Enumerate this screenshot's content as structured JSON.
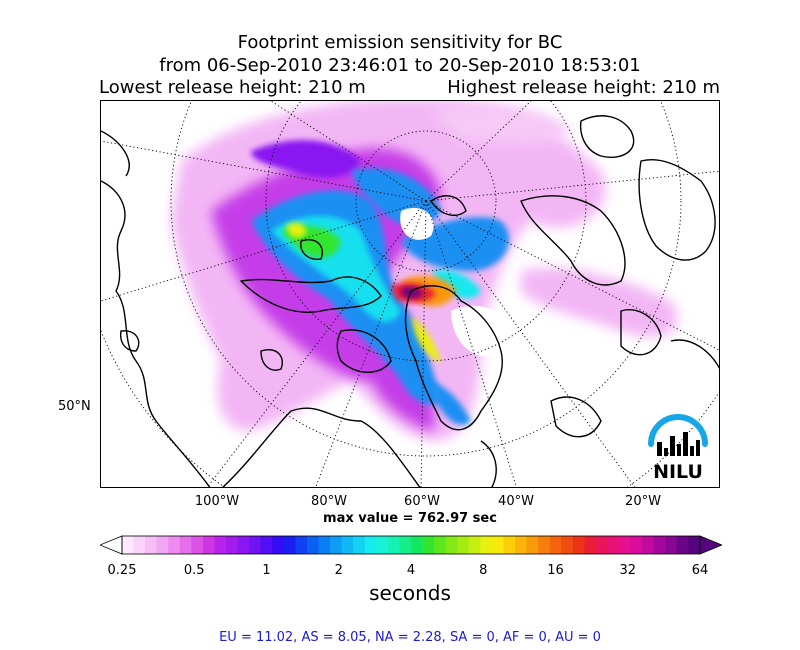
{
  "chart_data": {
    "type": "heatmap",
    "title": [
      "Footprint emission sensitivity for BC",
      "from 06-Sep-2010 23:46:01 to 20-Sep-2010 18:53:01"
    ],
    "subtitle_left": "Lowest release height: 210 m",
    "subtitle_right": "Highest release height: 210 m",
    "x_ticks": [
      "100°W",
      "80°W",
      "60°W",
      "40°W",
      "20°W"
    ],
    "y_ticks": [
      "50°N"
    ],
    "annotation": "max value = 762.97 sec",
    "colorbar": {
      "label": "seconds",
      "ticks": [
        "0.25",
        "0.5",
        "1",
        "2",
        "4",
        "8",
        "16",
        "32",
        "64"
      ],
      "scale": "log",
      "range": [
        0.25,
        64
      ],
      "colors": [
        "#fde8fd",
        "#fad2fa",
        "#f6bdf6",
        "#f1a7f3",
        "#ec8cef",
        "#e46fea",
        "#dc52e6",
        "#cf36e3",
        "#b922e8",
        "#a21ded",
        "#8a17f1",
        "#6f12f4",
        "#520ef6",
        "#340bf4",
        "#1a1ff0",
        "#1040ef",
        "#0b5ff1",
        "#0c7ef3",
        "#0e9df5",
        "#10b8f5",
        "#13d3f3",
        "#16e9ef",
        "#17f2d6",
        "#16f2b2",
        "#15ee8a",
        "#13e65f",
        "#33e52e",
        "#5be61e",
        "#82e916",
        "#a6ec12",
        "#c8ee10",
        "#e7f00e",
        "#f9e90c",
        "#fbd00b",
        "#fbb50a",
        "#f99a0a",
        "#f67f0b",
        "#f3640d",
        "#f04b10",
        "#ec3416",
        "#ea1d35",
        "#e9145a",
        "#e81178",
        "#e60f92",
        "#d90c9f",
        "#c00a9f",
        "#a4089a",
        "#870693",
        "#6b0588",
        "#54047c"
      ]
    },
    "source_regions": "EU = 11.02,  AS = 8.05,  NA = 2.28,  SA = 0,  AF = 0,  AU = 0",
    "logo_text": "NILU"
  }
}
